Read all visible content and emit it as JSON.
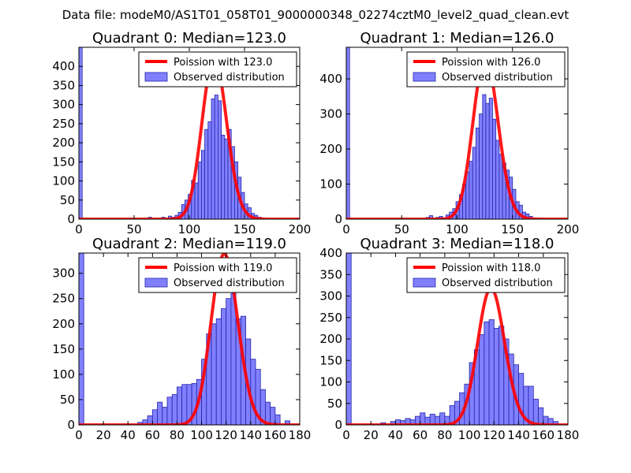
{
  "figure": {
    "suptitle": "Data file: modeM0/AS1T01_058T01_9000000348_02274cztM0_level2_quad_clean.evt",
    "colors": {
      "bar_fill": "#8080ff",
      "bar_edge": "#2424a8",
      "curve": "#ff0000",
      "axes": "#000000"
    }
  },
  "chart_data": [
    {
      "type": "bar",
      "title": "Quadrant 0: Median=123.0",
      "median": 123.0,
      "xlim": [
        0,
        200
      ],
      "ylim": [
        0,
        450
      ],
      "xticks": [
        0,
        50,
        100,
        150,
        200
      ],
      "yticks": [
        0,
        50,
        100,
        150,
        200,
        250,
        300,
        350,
        400
      ],
      "bin_width": 3,
      "bins": [
        [
          0,
          450
        ],
        [
          63,
          5
        ],
        [
          75,
          5
        ],
        [
          81,
          8
        ],
        [
          84,
          5
        ],
        [
          87,
          10
        ],
        [
          90,
          18
        ],
        [
          93,
          38
        ],
        [
          96,
          50
        ],
        [
          99,
          65
        ],
        [
          102,
          102
        ],
        [
          105,
          95
        ],
        [
          108,
          150
        ],
        [
          111,
          180
        ],
        [
          114,
          235
        ],
        [
          117,
          255
        ],
        [
          120,
          315
        ],
        [
          123,
          325
        ],
        [
          126,
          310
        ],
        [
          129,
          220
        ],
        [
          132,
          210
        ],
        [
          135,
          235
        ],
        [
          138,
          190
        ],
        [
          141,
          150
        ],
        [
          144,
          110
        ],
        [
          147,
          70
        ],
        [
          150,
          40
        ],
        [
          153,
          30
        ],
        [
          156,
          15
        ],
        [
          159,
          10
        ],
        [
          162,
          5
        ],
        [
          168,
          3
        ]
      ],
      "legend": {
        "curve_label": "Poission with 123.0",
        "bar_label": "Observed distribution",
        "position": "upper right"
      }
    },
    {
      "type": "bar",
      "title": "Quadrant 1: Median=126.0",
      "median": 126.0,
      "xlim": [
        0,
        200
      ],
      "ylim": [
        0,
        490
      ],
      "xticks": [
        0,
        50,
        100,
        150,
        200
      ],
      "yticks": [
        0,
        100,
        200,
        300,
        400
      ],
      "bin_width": 3,
      "bins": [
        [
          0,
          490
        ],
        [
          72,
          5
        ],
        [
          75,
          10
        ],
        [
          81,
          5
        ],
        [
          84,
          8
        ],
        [
          90,
          12
        ],
        [
          93,
          20
        ],
        [
          96,
          30
        ],
        [
          99,
          50
        ],
        [
          102,
          70
        ],
        [
          105,
          100
        ],
        [
          108,
          135
        ],
        [
          111,
          165
        ],
        [
          114,
          205
        ],
        [
          117,
          260
        ],
        [
          120,
          300
        ],
        [
          123,
          355
        ],
        [
          126,
          330
        ],
        [
          129,
          345
        ],
        [
          132,
          285
        ],
        [
          135,
          225
        ],
        [
          138,
          185
        ],
        [
          141,
          160
        ],
        [
          144,
          140
        ],
        [
          147,
          120
        ],
        [
          150,
          85
        ],
        [
          153,
          50
        ],
        [
          156,
          40
        ],
        [
          159,
          20
        ],
        [
          162,
          15
        ],
        [
          165,
          8
        ],
        [
          171,
          3
        ]
      ],
      "legend": {
        "curve_label": "Poission with 126.0",
        "bar_label": "Observed distribution",
        "position": "upper right"
      }
    },
    {
      "type": "bar",
      "title": "Quadrant 2: Median=119.0",
      "median": 119.0,
      "xlim": [
        0,
        180
      ],
      "ylim": [
        0,
        340
      ],
      "xticks": [
        0,
        20,
        40,
        60,
        80,
        100,
        120,
        140,
        160,
        180
      ],
      "yticks": [
        0,
        50,
        100,
        150,
        200,
        250,
        300
      ],
      "bin_width": 4,
      "bins": [
        [
          0,
          340
        ],
        [
          48,
          5
        ],
        [
          52,
          10
        ],
        [
          56,
          18
        ],
        [
          60,
          30
        ],
        [
          64,
          45
        ],
        [
          68,
          35
        ],
        [
          72,
          55
        ],
        [
          76,
          60
        ],
        [
          80,
          75
        ],
        [
          84,
          80
        ],
        [
          88,
          80
        ],
        [
          92,
          82
        ],
        [
          96,
          90
        ],
        [
          100,
          130
        ],
        [
          104,
          180
        ],
        [
          108,
          200
        ],
        [
          112,
          210
        ],
        [
          116,
          230
        ],
        [
          120,
          250
        ],
        [
          124,
          260
        ],
        [
          128,
          210
        ],
        [
          132,
          215
        ],
        [
          136,
          170
        ],
        [
          140,
          130
        ],
        [
          144,
          110
        ],
        [
          148,
          70
        ],
        [
          152,
          45
        ],
        [
          156,
          35
        ],
        [
          160,
          20
        ],
        [
          168,
          8
        ]
      ],
      "legend": {
        "curve_label": "Poission with 119.0",
        "bar_label": "Observed distribution",
        "position": "upper right"
      }
    },
    {
      "type": "bar",
      "title": "Quadrant 3: Median=118.0",
      "median": 118.0,
      "xlim": [
        0,
        180
      ],
      "ylim": [
        0,
        400
      ],
      "xticks": [
        0,
        20,
        40,
        60,
        80,
        100,
        120,
        140,
        160,
        180
      ],
      "yticks": [
        0,
        50,
        100,
        150,
        200,
        250,
        300,
        350,
        400
      ],
      "bin_width": 4,
      "bins": [
        [
          0,
          400
        ],
        [
          28,
          5
        ],
        [
          36,
          8
        ],
        [
          40,
          12
        ],
        [
          44,
          10
        ],
        [
          48,
          15
        ],
        [
          52,
          12
        ],
        [
          56,
          20
        ],
        [
          60,
          28
        ],
        [
          64,
          18
        ],
        [
          68,
          25
        ],
        [
          72,
          20
        ],
        [
          76,
          28
        ],
        [
          80,
          20
        ],
        [
          84,
          45
        ],
        [
          88,
          55
        ],
        [
          92,
          75
        ],
        [
          96,
          95
        ],
        [
          100,
          145
        ],
        [
          104,
          175
        ],
        [
          108,
          210
        ],
        [
          112,
          240
        ],
        [
          116,
          245
        ],
        [
          120,
          225
        ],
        [
          124,
          230
        ],
        [
          128,
          200
        ],
        [
          132,
          165
        ],
        [
          136,
          140
        ],
        [
          140,
          120
        ],
        [
          144,
          90
        ],
        [
          148,
          90
        ],
        [
          152,
          60
        ],
        [
          156,
          40
        ],
        [
          160,
          20
        ],
        [
          164,
          15
        ],
        [
          168,
          8
        ]
      ],
      "legend": {
        "curve_label": "Poission with 118.0",
        "bar_label": "Observed distribution",
        "position": "upper right"
      }
    }
  ]
}
